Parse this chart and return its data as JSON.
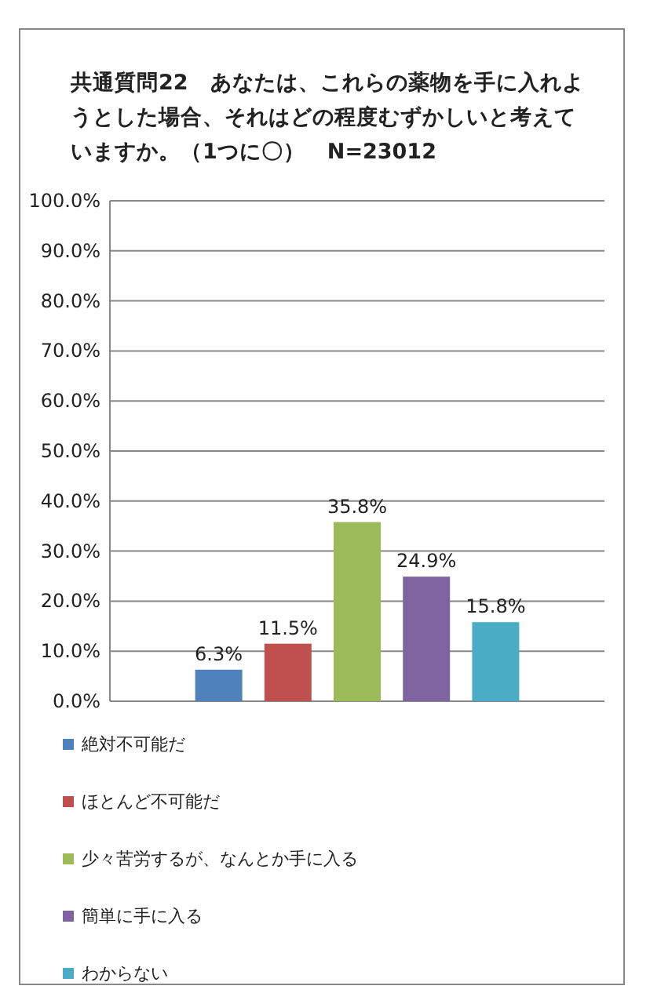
{
  "chart_data": {
    "type": "bar",
    "title": "共通質問22　あなたは、これらの薬物を手に入れようとした場合、それはどの程度むずかしいと考えていますか。（1つに〇）　N=23012",
    "categories": [
      null
    ],
    "series": [
      {
        "name": "絶対不可能だ",
        "color": "#4f81bd",
        "values": [
          6.3
        ],
        "value_labels": [
          "6.3%"
        ]
      },
      {
        "name": "ほとんど不可能だ",
        "color": "#c0504d",
        "values": [
          11.5
        ],
        "value_labels": [
          "11.5%"
        ]
      },
      {
        "name": "少々苦労するが、なんとか手に入る",
        "color": "#9bbb59",
        "values": [
          35.8
        ],
        "value_labels": [
          "35.8%"
        ]
      },
      {
        "name": "簡単に手に入る",
        "color": "#8064a2",
        "values": [
          24.9
        ],
        "value_labels": [
          "24.9%"
        ]
      },
      {
        "name": "わからない",
        "color": "#4bacc6",
        "values": [
          15.8
        ],
        "value_labels": [
          "15.8%"
        ]
      }
    ],
    "ylim": [
      0,
      100
    ],
    "yticks": [
      {
        "value": 0,
        "label": "0.0%"
      },
      {
        "value": 10,
        "label": "10.0%"
      },
      {
        "value": 20,
        "label": "20.0%"
      },
      {
        "value": 30,
        "label": "30.0%"
      },
      {
        "value": 40,
        "label": "40.0%"
      },
      {
        "value": 50,
        "label": "50.0%"
      },
      {
        "value": 60,
        "label": "60.0%"
      },
      {
        "value": 70,
        "label": "70.0%"
      },
      {
        "value": 80,
        "label": "80.0%"
      },
      {
        "value": 90,
        "label": "90.0%"
      },
      {
        "value": 100,
        "label": "100.0%"
      }
    ],
    "grid": "y",
    "legend": "bottom"
  }
}
